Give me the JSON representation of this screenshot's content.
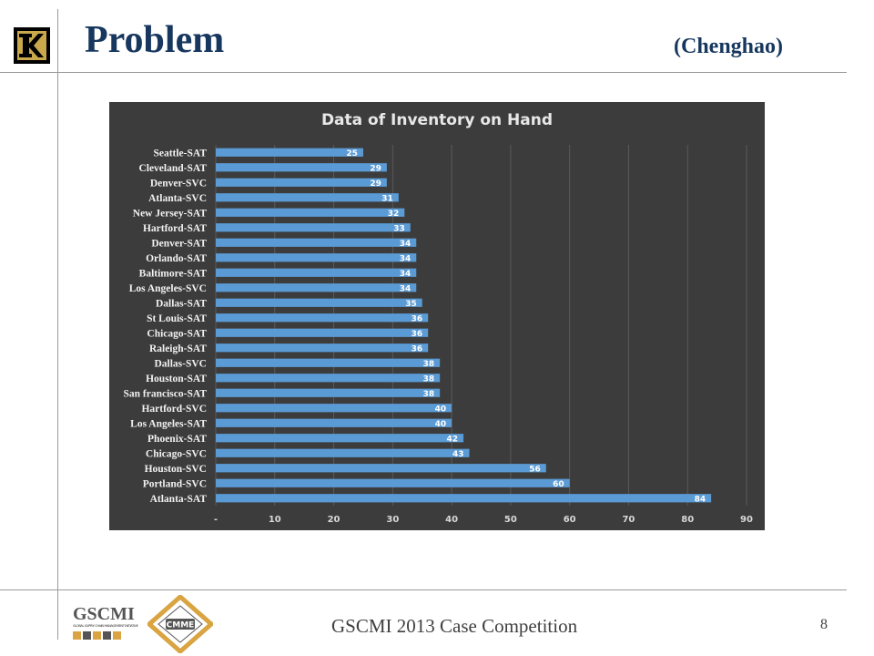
{
  "header": {
    "title": "Problem",
    "presenter": "(Chenghao)"
  },
  "footer": {
    "text": "GSCMI 2013 Case Competition",
    "page_number": "8",
    "gscmi_logo_text": "GSCMI",
    "gscmi_tagline": "GLOBAL SUPPLY CHAIN MANAGEMENT INITIATIVE",
    "cmme_logo_text": "CMME"
  },
  "colors": {
    "title": "#17375e",
    "chart_bg": "#3d3d3d",
    "bar": "#5b9bd5"
  },
  "chart_data": {
    "type": "bar",
    "orientation": "horizontal",
    "title": "Data of Inventory on Hand",
    "xlabel": "",
    "ylabel": "",
    "xlim": [
      0,
      90
    ],
    "x_ticks": [
      "-",
      "10",
      "20",
      "30",
      "40",
      "50",
      "60",
      "70",
      "80",
      "90"
    ],
    "grid": true,
    "legend": "none",
    "categories": [
      "Seattle-SAT",
      "Cleveland-SAT",
      "Denver-SVC",
      "Atlanta-SVC",
      "New Jersey-SAT",
      "Hartford-SAT",
      "Denver-SAT",
      "Orlando-SAT",
      "Baltimore-SAT",
      "Los Angeles-SVC",
      "Dallas-SAT",
      "St Louis-SAT",
      "Chicago-SAT",
      "Raleigh-SAT",
      "Dallas-SVC",
      "Houston-SAT",
      "San francisco-SAT",
      "Hartford-SVC",
      "Los Angeles-SAT",
      "Phoenix-SAT",
      "Chicago-SVC",
      "Houston-SVC",
      "Portland-SVC",
      "Atlanta-SAT"
    ],
    "values": [
      25,
      29,
      29,
      31,
      32,
      33,
      34,
      34,
      34,
      34,
      35,
      36,
      36,
      36,
      38,
      38,
      38,
      40,
      40,
      42,
      43,
      56,
      60,
      84
    ]
  }
}
